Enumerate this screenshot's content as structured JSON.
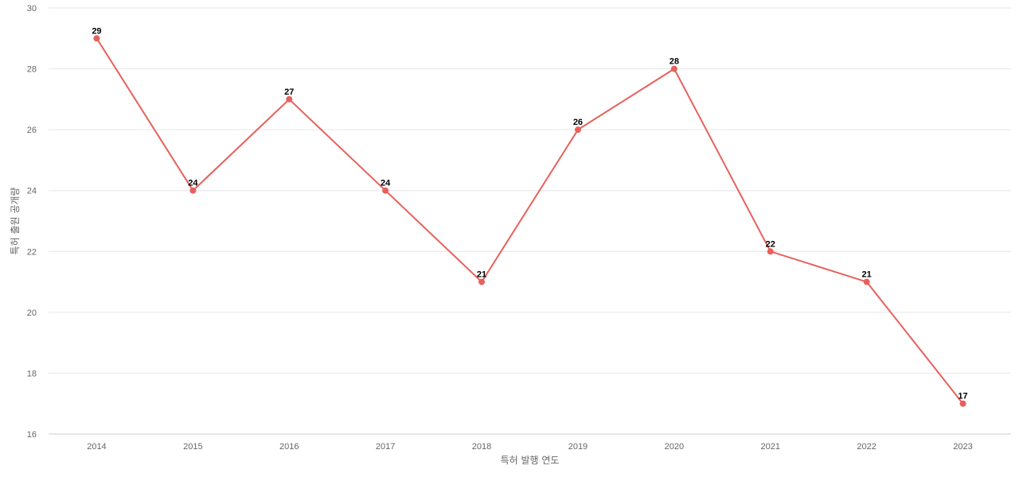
{
  "chart_data": {
    "type": "line",
    "title": "",
    "xlabel": "특허 발행 연도",
    "ylabel": "특허 출원 공개량",
    "x": [
      "2014",
      "2015",
      "2016",
      "2017",
      "2018",
      "2019",
      "2020",
      "2021",
      "2022",
      "2023"
    ],
    "series": [
      {
        "values": [
          29,
          24,
          27,
          24,
          21,
          26,
          28,
          22,
          21,
          17
        ],
        "color": "#e8605c"
      }
    ],
    "ylim": [
      16,
      30
    ],
    "yticks": [
      16,
      18,
      20,
      22,
      24,
      26,
      28,
      30
    ],
    "grid": true,
    "legend": "none"
  }
}
